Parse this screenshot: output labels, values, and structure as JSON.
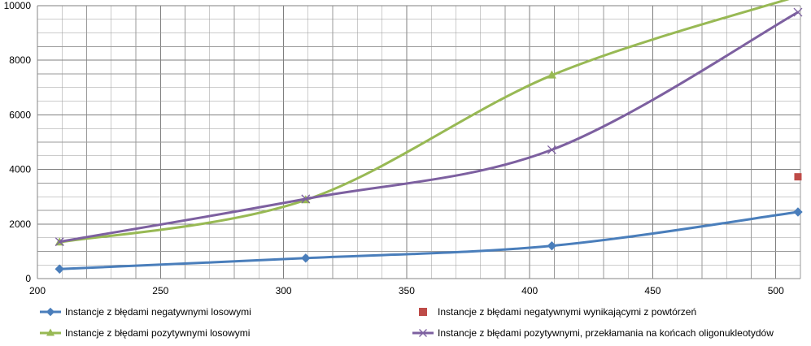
{
  "chart_data": {
    "type": "line",
    "title": "",
    "xlabel": "",
    "ylabel": "",
    "xlim": [
      200,
      510
    ],
    "ylim": [
      0,
      10000
    ],
    "x_ticks": [
      200,
      250,
      300,
      350,
      400,
      450,
      500
    ],
    "y_ticks": [
      0,
      2000,
      4000,
      6000,
      8000,
      10000
    ],
    "x_minor_step": 10,
    "y_minor_step": 500,
    "grid": true,
    "legend_position": "bottom",
    "series": [
      {
        "name": "Instancje z błędami negatywnymi losowymi",
        "color": "#4a7ebb",
        "marker": "diamond",
        "x": [
          209,
          309,
          409,
          509
        ],
        "y": [
          350,
          750,
          1200,
          2440
        ]
      },
      {
        "name": "Instancje z błędami negatywnymi wynikającymi z powtórzeń",
        "color": "#be4b48",
        "marker": "square",
        "x": [
          509
        ],
        "y": [
          3730
        ]
      },
      {
        "name": "Instancje z błędami pozytywnymi losowymi",
        "color": "#98b954",
        "marker": "triangle",
        "x": [
          209,
          309,
          409,
          509
        ],
        "y": [
          1330,
          2880,
          7450,
          10350
        ]
      },
      {
        "name": "Instancje z błędami pozytywnymi, przekłamania na końcach oligonukleotydów",
        "color": "#7d60a0",
        "marker": "x",
        "x": [
          209,
          309,
          409,
          509
        ],
        "y": [
          1350,
          2920,
          4720,
          9760
        ]
      }
    ]
  }
}
